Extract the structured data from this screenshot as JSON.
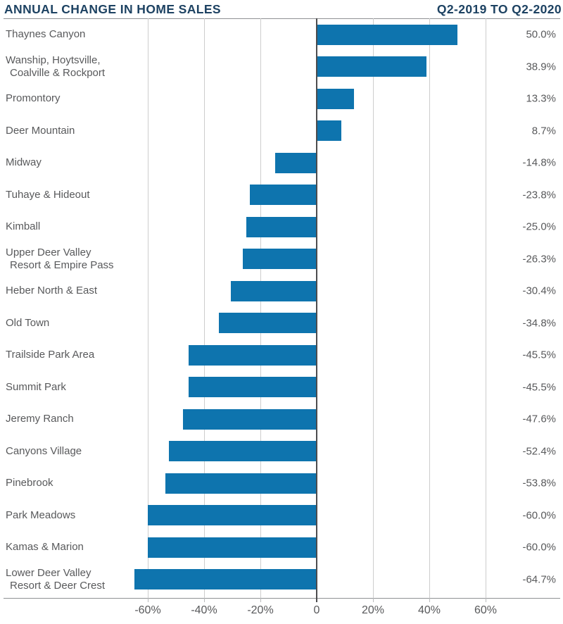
{
  "header": {
    "title": "ANNUAL CHANGE IN HOME SALES",
    "subtitle": "Q2-2019 TO Q2-2020"
  },
  "colors": {
    "title_navy": "#1d4262",
    "bar_blue": "#0e74ae",
    "label_gray": "#58595b",
    "gridline": "#cdcdcd",
    "zero_line": "#4c4c4e",
    "frame_line": "#8f9193"
  },
  "chart_data": {
    "type": "bar",
    "orientation": "horizontal",
    "title": "ANNUAL CHANGE IN HOME SALES",
    "subtitle": "Q2-2019 TO Q2-2020",
    "unit": "percent",
    "grid": true,
    "xlim": [
      -70,
      80
    ],
    "x_ticks": [
      {
        "label": "-60%",
        "value": -60
      },
      {
        "label": "-40%",
        "value": -40
      },
      {
        "label": "-20%",
        "value": -20
      },
      {
        "label": "0",
        "value": 0
      },
      {
        "label": "20%",
        "value": 20
      },
      {
        "label": "40%",
        "value": 40
      },
      {
        "label": "60%",
        "value": 60
      }
    ],
    "categories": [
      [
        "Thaynes Canyon"
      ],
      [
        "Wanship, Hoytsville,",
        "Coalville & Rockport"
      ],
      [
        "Promontory"
      ],
      [
        "Deer Mountain"
      ],
      [
        "Midway"
      ],
      [
        "Tuhaye & Hideout"
      ],
      [
        "Kimball"
      ],
      [
        "Upper Deer Valley",
        "Resort & Empire Pass"
      ],
      [
        "Heber North & East"
      ],
      [
        "Old Town"
      ],
      [
        "Trailside Park Area"
      ],
      [
        "Summit Park"
      ],
      [
        "Jeremy Ranch"
      ],
      [
        "Canyons Village"
      ],
      [
        "Pinebrook"
      ],
      [
        "Park Meadows"
      ],
      [
        "Kamas & Marion"
      ],
      [
        "Lower Deer Valley",
        "Resort & Deer Crest"
      ]
    ],
    "values": [
      50.0,
      38.9,
      13.3,
      8.7,
      -14.8,
      -23.8,
      -25.0,
      -26.3,
      -30.4,
      -34.8,
      -45.5,
      -45.5,
      -47.6,
      -52.4,
      -53.8,
      -60.0,
      -60.0,
      -64.7
    ],
    "value_labels": [
      "50.0%",
      "38.9%",
      "13.3%",
      "8.7%",
      "-14.8%",
      "-23.8%",
      "-25.0%",
      "-26.3%",
      "-30.4%",
      "-34.8%",
      "-45.5%",
      "-45.5%",
      "-47.6%",
      "-52.4%",
      "-53.8%",
      "-60.0%",
      "-60.0%",
      "-64.7%"
    ],
    "value_label_position": "right-margin",
    "legend": null
  }
}
